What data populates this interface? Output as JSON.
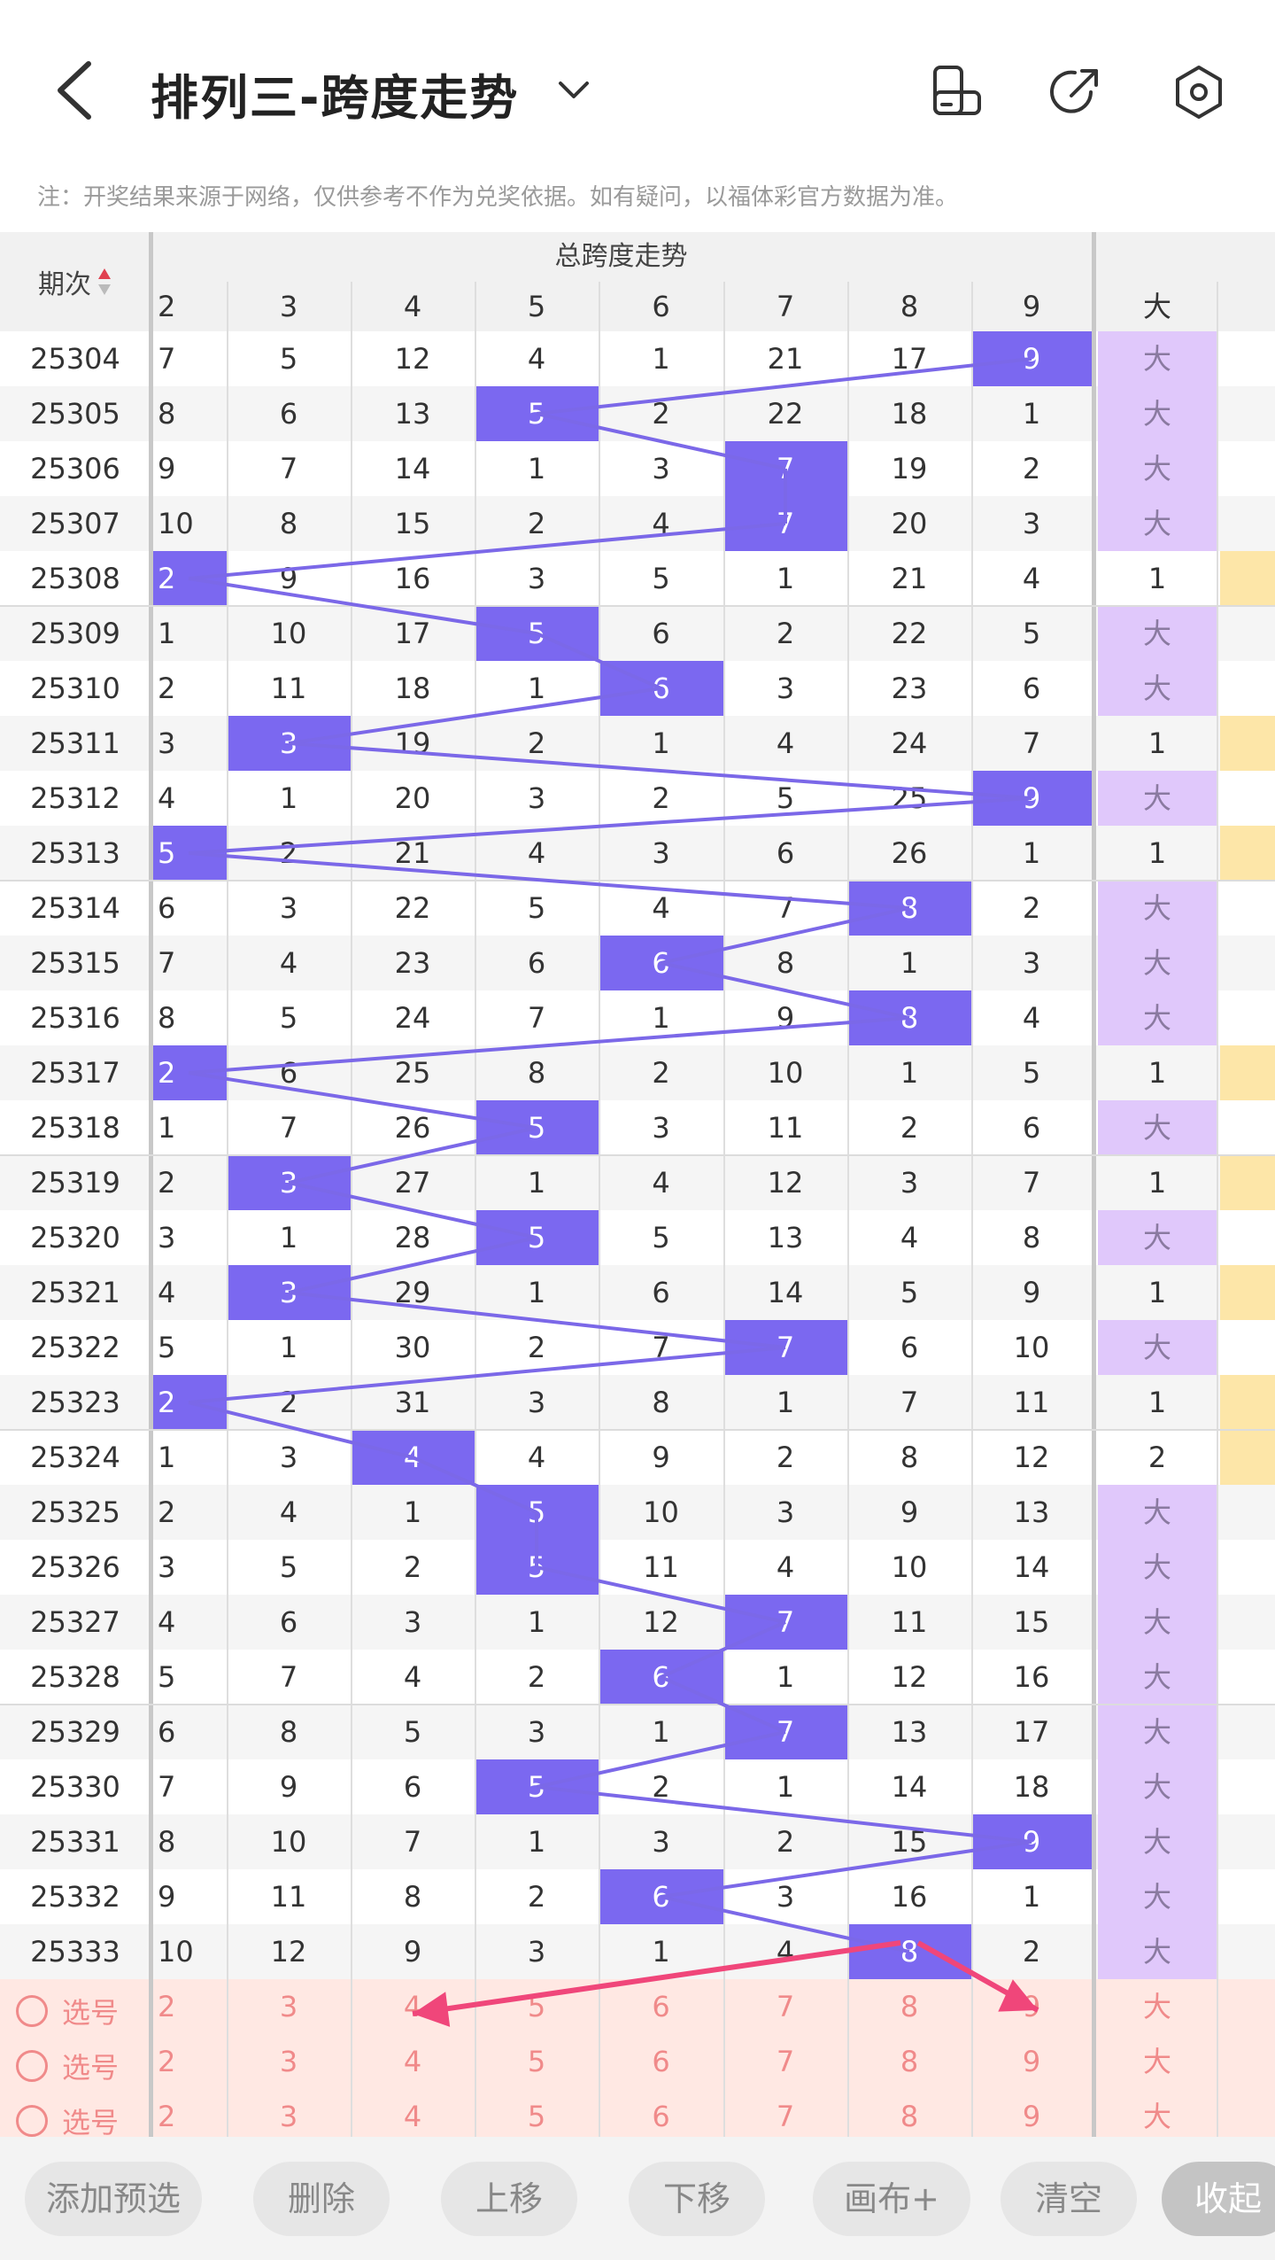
{
  "header": {
    "title": "排列三-跨度走势"
  },
  "note": "注：开奖结果来源于网络，仅供参考不作为兑奖依据。如有疑问，以福体彩官方数据为准。",
  "table": {
    "issue_header": "期次",
    "section_title": "总跨度走势",
    "columns": [
      "2",
      "3",
      "4",
      "5",
      "6",
      "7",
      "8",
      "9"
    ],
    "size_header": "大",
    "rows": [
      {
        "issue": "25304",
        "cells": [
          "7",
          "5",
          "12",
          "4",
          "1",
          "21",
          "17",
          "9"
        ],
        "hit": 7,
        "size": "大",
        "edge": false
      },
      {
        "issue": "25305",
        "cells": [
          "8",
          "6",
          "13",
          "5",
          "2",
          "22",
          "18",
          "1"
        ],
        "hit": 3,
        "size": "大",
        "edge": false
      },
      {
        "issue": "25306",
        "cells": [
          "9",
          "7",
          "14",
          "1",
          "3",
          "7",
          "19",
          "2"
        ],
        "hit": 5,
        "size": "大",
        "edge": false
      },
      {
        "issue": "25307",
        "cells": [
          "10",
          "8",
          "15",
          "2",
          "4",
          "7",
          "20",
          "3"
        ],
        "hit": 5,
        "size": "大",
        "edge": false
      },
      {
        "issue": "25308",
        "cells": [
          "2",
          "9",
          "16",
          "3",
          "5",
          "1",
          "21",
          "4"
        ],
        "hit": 0,
        "size": "1",
        "edge": true
      },
      {
        "issue": "25309",
        "cells": [
          "1",
          "10",
          "17",
          "5",
          "6",
          "2",
          "22",
          "5"
        ],
        "hit": 3,
        "size": "大",
        "edge": false
      },
      {
        "issue": "25310",
        "cells": [
          "2",
          "11",
          "18",
          "1",
          "6",
          "3",
          "23",
          "6"
        ],
        "hit": 4,
        "size": "大",
        "edge": false
      },
      {
        "issue": "25311",
        "cells": [
          "3",
          "3",
          "19",
          "2",
          "1",
          "4",
          "24",
          "7"
        ],
        "hit": 1,
        "size": "1",
        "edge": true
      },
      {
        "issue": "25312",
        "cells": [
          "4",
          "1",
          "20",
          "3",
          "2",
          "5",
          "25",
          "9"
        ],
        "hit": 7,
        "size": "大",
        "edge": false
      },
      {
        "issue": "25313",
        "cells": [
          "5",
          "2",
          "21",
          "4",
          "3",
          "6",
          "26",
          "1"
        ],
        "hit": 0,
        "size": "1",
        "edge": true
      },
      {
        "issue": "25314",
        "cells": [
          "6",
          "3",
          "22",
          "5",
          "4",
          "7",
          "8",
          "2"
        ],
        "hit": 6,
        "size": "大",
        "edge": false
      },
      {
        "issue": "25315",
        "cells": [
          "7",
          "4",
          "23",
          "6",
          "6",
          "8",
          "1",
          "3"
        ],
        "hit": 4,
        "size": "大",
        "edge": false
      },
      {
        "issue": "25316",
        "cells": [
          "8",
          "5",
          "24",
          "7",
          "1",
          "9",
          "8",
          "4"
        ],
        "hit": 6,
        "size": "大",
        "edge": false
      },
      {
        "issue": "25317",
        "cells": [
          "2",
          "6",
          "25",
          "8",
          "2",
          "10",
          "1",
          "5"
        ],
        "hit": 0,
        "size": "1",
        "edge": true
      },
      {
        "issue": "25318",
        "cells": [
          "1",
          "7",
          "26",
          "5",
          "3",
          "11",
          "2",
          "6"
        ],
        "hit": 3,
        "size": "大",
        "edge": false
      },
      {
        "issue": "25319",
        "cells": [
          "2",
          "3",
          "27",
          "1",
          "4",
          "12",
          "3",
          "7"
        ],
        "hit": 1,
        "size": "1",
        "edge": true
      },
      {
        "issue": "25320",
        "cells": [
          "3",
          "1",
          "28",
          "5",
          "5",
          "13",
          "4",
          "8"
        ],
        "hit": 3,
        "size": "大",
        "edge": false
      },
      {
        "issue": "25321",
        "cells": [
          "4",
          "3",
          "29",
          "1",
          "6",
          "14",
          "5",
          "9"
        ],
        "hit": 1,
        "size": "1",
        "edge": true
      },
      {
        "issue": "25322",
        "cells": [
          "5",
          "1",
          "30",
          "2",
          "7",
          "7",
          "6",
          "10"
        ],
        "hit": 5,
        "size": "大",
        "edge": false
      },
      {
        "issue": "25323",
        "cells": [
          "2",
          "2",
          "31",
          "3",
          "8",
          "1",
          "7",
          "11"
        ],
        "hit": 0,
        "size": "1",
        "edge": true
      },
      {
        "issue": "25324",
        "cells": [
          "1",
          "3",
          "4",
          "4",
          "9",
          "2",
          "8",
          "12"
        ],
        "hit": 2,
        "size": "2",
        "edge": true
      },
      {
        "issue": "25325",
        "cells": [
          "2",
          "4",
          "1",
          "5",
          "10",
          "3",
          "9",
          "13"
        ],
        "hit": 3,
        "size": "大",
        "edge": false
      },
      {
        "issue": "25326",
        "cells": [
          "3",
          "5",
          "2",
          "5",
          "11",
          "4",
          "10",
          "14"
        ],
        "hit": 3,
        "size": "大",
        "edge": false
      },
      {
        "issue": "25327",
        "cells": [
          "4",
          "6",
          "3",
          "1",
          "12",
          "7",
          "11",
          "15"
        ],
        "hit": 5,
        "size": "大",
        "edge": false
      },
      {
        "issue": "25328",
        "cells": [
          "5",
          "7",
          "4",
          "2",
          "6",
          "1",
          "12",
          "16"
        ],
        "hit": 4,
        "size": "大",
        "edge": false
      },
      {
        "issue": "25329",
        "cells": [
          "6",
          "8",
          "5",
          "3",
          "1",
          "7",
          "13",
          "17"
        ],
        "hit": 5,
        "size": "大",
        "edge": false
      },
      {
        "issue": "25330",
        "cells": [
          "7",
          "9",
          "6",
          "5",
          "2",
          "1",
          "14",
          "18"
        ],
        "hit": 3,
        "size": "大",
        "edge": false
      },
      {
        "issue": "25331",
        "cells": [
          "8",
          "10",
          "7",
          "1",
          "3",
          "2",
          "15",
          "9"
        ],
        "hit": 7,
        "size": "大",
        "edge": false
      },
      {
        "issue": "25332",
        "cells": [
          "9",
          "11",
          "8",
          "2",
          "6",
          "3",
          "16",
          "1"
        ],
        "hit": 4,
        "size": "大",
        "edge": false
      },
      {
        "issue": "25333",
        "cells": [
          "10",
          "12",
          "9",
          "3",
          "1",
          "4",
          "8",
          "2"
        ],
        "hit": 6,
        "size": "大",
        "edge": false
      }
    ],
    "select_rows": [
      {
        "label": "选号",
        "cells": [
          "2",
          "3",
          "4",
          "5",
          "6",
          "7",
          "8",
          "9"
        ],
        "size": "大"
      },
      {
        "label": "选号",
        "cells": [
          "2",
          "3",
          "4",
          "5",
          "6",
          "7",
          "8",
          "9"
        ],
        "size": "大"
      },
      {
        "label": "选号",
        "cells": [
          "2",
          "3",
          "4",
          "5",
          "6",
          "7",
          "8",
          "9"
        ],
        "size": "大"
      }
    ]
  },
  "colors": {
    "hit": "#7b68f0",
    "trend_line": "#7b68e8",
    "big": "#e0c8fb",
    "edge": "#fde6a8",
    "select": "#f08a8a",
    "arrow": "#f0467a"
  },
  "bottom_bar": [
    "添加预选",
    "删除",
    "上移",
    "下移",
    "画布+",
    "清空",
    "收起"
  ]
}
